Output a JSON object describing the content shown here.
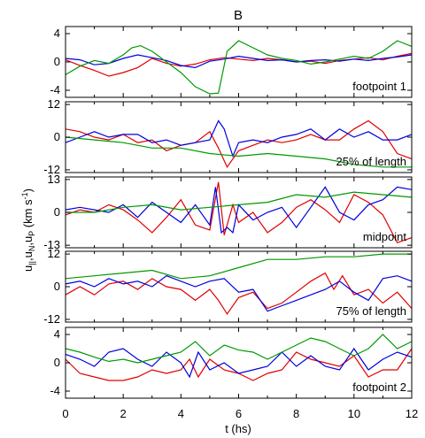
{
  "chart_data": {
    "type": "line",
    "title": "B",
    "xlabel": "t (hs)",
    "ylabel_parts": {
      "main": "u",
      "sub1": "||",
      "sep1": ",u",
      "sub2": "N",
      "sep2": ",u",
      "sub3": "P",
      "unit": " (km s",
      "sup": "-1",
      "close": ")"
    },
    "xlim": [
      0,
      12
    ],
    "x_ticks": [
      0,
      2,
      4,
      6,
      8,
      10,
      12
    ],
    "colors": {
      "parallel": "#e00000",
      "normal": "#0000dd",
      "perp": "#009900"
    },
    "panels": [
      {
        "label": "footpoint 1",
        "ylim": [
          -5,
          5
        ],
        "y_ticks": [
          -4,
          0,
          4
        ],
        "series": [
          {
            "key": "red",
            "x": [
              0,
              0.5,
              1,
              1.5,
              2,
              2.5,
              3,
              3.5,
              4,
              4.5,
              5,
              5.5,
              6,
              6.5,
              7,
              7.5,
              8,
              8.5,
              9,
              9.5,
              10,
              10.5,
              11,
              11.5,
              12
            ],
            "y": [
              0.3,
              -0.5,
              -1.2,
              -2,
              -1.5,
              -0.8,
              0.5,
              -0.2,
              -0.6,
              -0.3,
              0.3,
              0.6,
              0.4,
              0.2,
              0.5,
              0.3,
              0.0,
              0.1,
              -0.2,
              0.2,
              0.4,
              0.6,
              0.3,
              0.8,
              1.2
            ]
          },
          {
            "key": "blue",
            "x": [
              0,
              0.5,
              1,
              1.5,
              2,
              2.5,
              3,
              3.5,
              4,
              4.5,
              5,
              5.5,
              6,
              6.5,
              7,
              7.5,
              8,
              8.5,
              9,
              9.5,
              10,
              10.5,
              11,
              11.5,
              12
            ],
            "y": [
              0.5,
              0.3,
              -0.4,
              -0.2,
              0.5,
              1.0,
              0.6,
              0.2,
              -0.5,
              -0.8,
              0.1,
              0.4,
              0.8,
              0.5,
              0.2,
              0.3,
              0.0,
              0.2,
              0.3,
              0.1,
              0.4,
              0.2,
              0.5,
              0.7,
              1.0
            ]
          },
          {
            "key": "green",
            "x": [
              0,
              0.5,
              1,
              1.5,
              2,
              2.3,
              2.6,
              3,
              3.5,
              4,
              4.5,
              5,
              5.3,
              5.6,
              6,
              6.5,
              7,
              7.5,
              8,
              8.5,
              9,
              9.5,
              10,
              10.5,
              11,
              11.5,
              12
            ],
            "y": [
              -1.8,
              -0.6,
              0.2,
              -0.2,
              1.0,
              2.0,
              2.3,
              1.5,
              0.0,
              -1.5,
              -3.5,
              -4.5,
              -4.4,
              1.5,
              3.0,
              2.0,
              1.0,
              0.5,
              0.2,
              -0.3,
              0.0,
              0.4,
              0.8,
              0.5,
              1.5,
              3.0,
              2.2
            ]
          }
        ]
      },
      {
        "label": "25% of length",
        "ylim": [
          -13,
          13
        ],
        "y_ticks": [
          -12,
          0,
          12
        ],
        "series": [
          {
            "key": "red",
            "x": [
              0,
              0.5,
              1,
              1.5,
              2,
              2.5,
              3,
              3.5,
              4,
              4.5,
              5,
              5.3,
              5.6,
              6,
              6.5,
              7,
              7.5,
              8,
              8.5,
              9,
              9.5,
              10,
              10.5,
              11,
              11.5,
              12
            ],
            "y": [
              3,
              2,
              0,
              -1,
              1,
              -2,
              -1,
              -5,
              -3,
              -2,
              2,
              -4,
              -11,
              -5,
              -3,
              -1,
              -2,
              -1,
              1,
              -1,
              -1,
              3,
              6,
              2,
              -6,
              -8
            ]
          },
          {
            "key": "blue",
            "x": [
              0,
              0.5,
              1,
              1.5,
              2,
              2.5,
              3,
              3.5,
              4,
              4.5,
              5,
              5.3,
              5.5,
              5.8,
              6,
              6.5,
              7,
              7.5,
              8,
              8.5,
              9,
              9.5,
              10,
              10.5,
              11,
              11.5,
              12
            ],
            "y": [
              -2,
              0,
              2,
              0,
              1,
              1,
              -2,
              -1,
              -3,
              -2,
              -1,
              6,
              3,
              -7,
              -2,
              -1,
              -2,
              0,
              1,
              3,
              -1,
              3,
              0,
              2,
              -1,
              -1,
              1
            ]
          },
          {
            "key": "green",
            "x": [
              0,
              1,
              2,
              3,
              4,
              5,
              6,
              7,
              8,
              9,
              10,
              11,
              12
            ],
            "y": [
              0,
              -1,
              -2,
              -4,
              -4,
              -6,
              -7,
              -6,
              -7,
              -8,
              -10,
              -11,
              -11
            ]
          }
        ]
      },
      {
        "label": "midpoint",
        "ylim": [
          -14,
          14
        ],
        "y_ticks": [
          -13,
          0,
          13
        ],
        "series": [
          {
            "key": "red",
            "x": [
              0,
              0.5,
              1,
              1.5,
              2,
              2.5,
              3,
              3.5,
              4,
              4.5,
              5,
              5.3,
              5.5,
              5.8,
              6,
              6.5,
              7,
              7.5,
              8,
              8.5,
              9,
              9.5,
              10,
              10.5,
              11,
              11.5,
              12
            ],
            "y": [
              -1,
              1,
              0,
              3,
              1,
              -3,
              -8,
              -2,
              5,
              -5,
              -7,
              12,
              -9,
              3,
              -4,
              0,
              -8,
              -4,
              2,
              5,
              1,
              -4,
              7,
              4,
              -1,
              -12,
              -10
            ]
          },
          {
            "key": "blue",
            "x": [
              0,
              0.5,
              1,
              1.5,
              2,
              2.5,
              3,
              3.5,
              4,
              4.5,
              5,
              5.2,
              5.4,
              5.6,
              5.8,
              6,
              6.5,
              7,
              7.5,
              8,
              8.5,
              9,
              9.5,
              10,
              10.5,
              11,
              11.5,
              12
            ],
            "y": [
              1,
              2,
              1,
              0,
              3,
              -2,
              4,
              0,
              -4,
              3,
              -5,
              10,
              -8,
              -6,
              -8,
              3,
              -3,
              0,
              2,
              -6,
              2,
              10,
              0,
              -3,
              3,
              5,
              10,
              9
            ]
          },
          {
            "key": "green",
            "x": [
              0,
              1,
              2,
              3,
              4,
              5,
              6,
              7,
              8,
              9,
              10,
              11,
              12
            ],
            "y": [
              0,
              0,
              2,
              3,
              1,
              2,
              3,
              4,
              7,
              6,
              8,
              7,
              6
            ]
          }
        ]
      },
      {
        "label": "75% of length",
        "ylim": [
          -13,
          13
        ],
        "y_ticks": [
          -12,
          0,
          12
        ],
        "series": [
          {
            "key": "red",
            "x": [
              0,
              0.5,
              1,
              1.5,
              2,
              2.5,
              3,
              3.5,
              4,
              4.5,
              5,
              5.3,
              5.6,
              6,
              6.5,
              7,
              7.5,
              8,
              8.5,
              9,
              9.3,
              9.6,
              10,
              10.5,
              11,
              11.5,
              12
            ],
            "y": [
              -3,
              0,
              -3,
              1,
              2,
              -1,
              3,
              0,
              -1,
              -5,
              -1,
              -5,
              -10,
              -4,
              -2,
              -8,
              -6,
              -2,
              2,
              5,
              -1,
              4,
              -3,
              -1,
              -6,
              -2,
              -8
            ]
          },
          {
            "key": "blue",
            "x": [
              0,
              0.5,
              1,
              1.5,
              2,
              2.5,
              3,
              3.5,
              4,
              4.5,
              5,
              5.5,
              6,
              6.5,
              7,
              7.5,
              8,
              8.5,
              9,
              9.5,
              10,
              10.5,
              11,
              11.5,
              12
            ],
            "y": [
              1,
              2,
              0,
              3,
              1,
              2,
              0,
              4,
              2,
              0,
              2,
              3,
              -2,
              -1,
              -9,
              -7,
              -5,
              -3,
              -1,
              2,
              -2,
              -5,
              3,
              4,
              2
            ]
          },
          {
            "key": "green",
            "x": [
              0,
              1,
              2,
              3,
              4,
              5,
              6,
              7,
              8,
              9,
              10,
              11,
              12
            ],
            "y": [
              3,
              4,
              5,
              6,
              3,
              4,
              7,
              10,
              10,
              11,
              11,
              12,
              12
            ]
          }
        ]
      },
      {
        "label": "footpoint 2",
        "ylim": [
          -5,
          5
        ],
        "y_ticks": [
          -4,
          0,
          4
        ],
        "series": [
          {
            "key": "red",
            "x": [
              0,
              0.5,
              1,
              1.5,
              2,
              2.5,
              3,
              3.5,
              4,
              4.3,
              4.6,
              5,
              5.5,
              6,
              6.5,
              7,
              7.5,
              8,
              8.5,
              9,
              9.5,
              10,
              10.5,
              11,
              11.5,
              12
            ],
            "y": [
              0.5,
              -1.5,
              -2,
              -2.5,
              -2.5,
              -2,
              -1,
              -1.5,
              -1,
              0.5,
              -2,
              0.5,
              -1,
              -1.5,
              -2.5,
              -1.5,
              -1,
              1.5,
              0.5,
              0.0,
              -0.5,
              1.0,
              -2,
              -1,
              -1,
              2
            ]
          },
          {
            "key": "blue",
            "x": [
              0,
              0.5,
              1,
              1.5,
              2,
              2.5,
              3,
              3.5,
              4,
              4.3,
              4.6,
              5,
              5.5,
              6,
              6.5,
              7,
              7.5,
              8,
              8.5,
              9,
              9.5,
              10,
              10.5,
              11,
              11.5,
              12
            ],
            "y": [
              1.2,
              0.5,
              -0.5,
              1.5,
              2.0,
              0.5,
              -0.5,
              1.5,
              0.0,
              -2,
              1.5,
              -1,
              0.0,
              -1.5,
              -1,
              -0.5,
              1.5,
              -0.5,
              1.0,
              -0.5,
              -1,
              2.0,
              -1,
              0.5,
              1.5,
              0.8
            ]
          },
          {
            "key": "green",
            "x": [
              0,
              0.5,
              1,
              1.5,
              2,
              2.5,
              3,
              3.5,
              4,
              4.5,
              5,
              5.5,
              6,
              6.5,
              7,
              7.5,
              8,
              8.5,
              9,
              9.5,
              10,
              10.5,
              11,
              11.5,
              12
            ],
            "y": [
              2.0,
              1.5,
              0.8,
              0.2,
              0.5,
              0.0,
              0.5,
              1.0,
              1.5,
              3.0,
              1.0,
              2.5,
              1.8,
              1.5,
              0.5,
              1.5,
              2.5,
              3.5,
              3.0,
              2.0,
              1.0,
              2.0,
              4.0,
              2.0,
              3.0
            ]
          }
        ]
      }
    ]
  }
}
